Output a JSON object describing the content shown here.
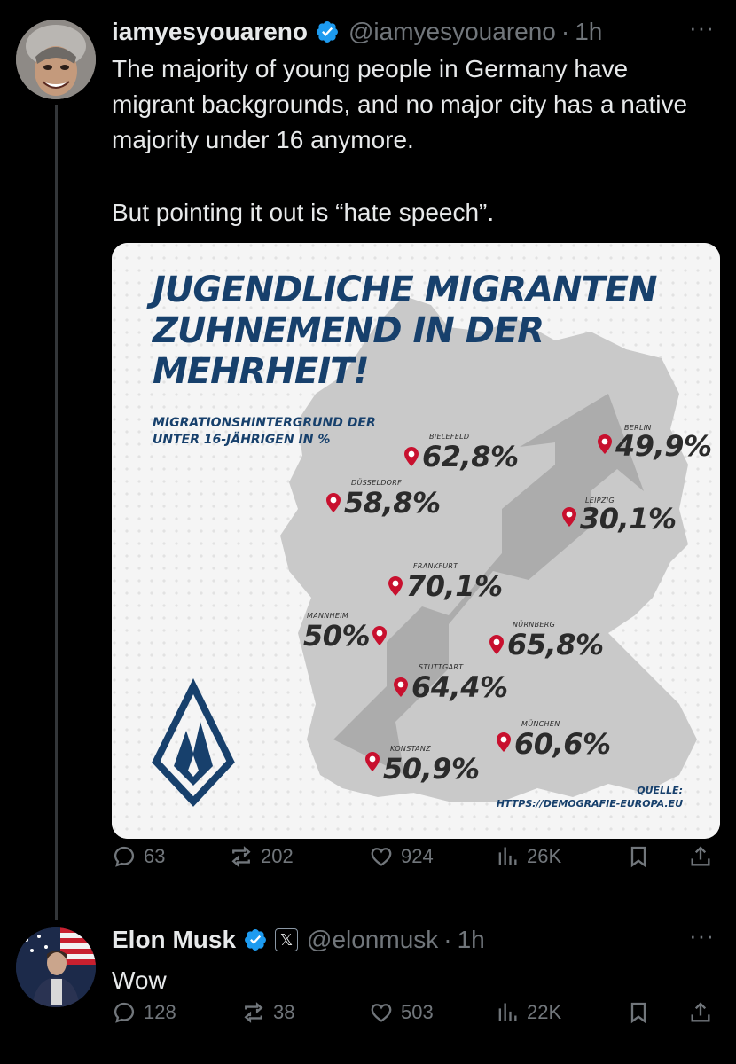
{
  "tweet1": {
    "display_name": "iamyesyouareno",
    "handle": "@iamyesyouareno",
    "time": "1h",
    "text_p1": "The majority of young people in Germany have migrant backgrounds, and no major city has a native majority under 16 anymore.",
    "text_p2": "But pointing it out is “hate speech”.",
    "media": {
      "title": "JUGENDLICHE MIGRANTEN ZUHNEMEND IN DER MEHRHEIT!",
      "subtitle": "MIGRATIONSHINTERGRUND DER UNTER 16-JÄHRIGEN IN %",
      "cities": [
        {
          "name": "BIELEFELD",
          "value": "62,8%"
        },
        {
          "name": "BERLIN",
          "value": "49,9%"
        },
        {
          "name": "DÜSSELDORF",
          "value": "58,8%"
        },
        {
          "name": "LEIPZIG",
          "value": "30,1%"
        },
        {
          "name": "FRANKFURT",
          "value": "70,1%"
        },
        {
          "name": "MANNHEIM",
          "value": "50%"
        },
        {
          "name": "NÜRNBERG",
          "value": "65,8%"
        },
        {
          "name": "STUTTGART",
          "value": "64,4%"
        },
        {
          "name": "MÜNCHEN",
          "value": "60,6%"
        },
        {
          "name": "KONSTANZ",
          "value": "50,9%"
        }
      ],
      "source_label": "QUELLE:",
      "source_url": "HTTPS://DEMOGRAFIE-EUROPA.EU"
    },
    "stats": {
      "replies": "63",
      "reposts": "202",
      "likes": "924",
      "views": "26K"
    }
  },
  "tweet2": {
    "display_name": "Elon Musk",
    "handle": "@elonmusk",
    "time": "1h",
    "text": "Wow",
    "stats": {
      "replies": "128",
      "reposts": "38",
      "likes": "503",
      "views": "22K"
    }
  },
  "separator": "·",
  "more_label": "···",
  "xbadge_glyph": "𝕏",
  "colors": {
    "background": "#000000",
    "text": "#e7e9ea",
    "muted": "#71767b",
    "verified": "#1d9bf0",
    "map_title": "#17406c",
    "pin": "#c8102e"
  }
}
